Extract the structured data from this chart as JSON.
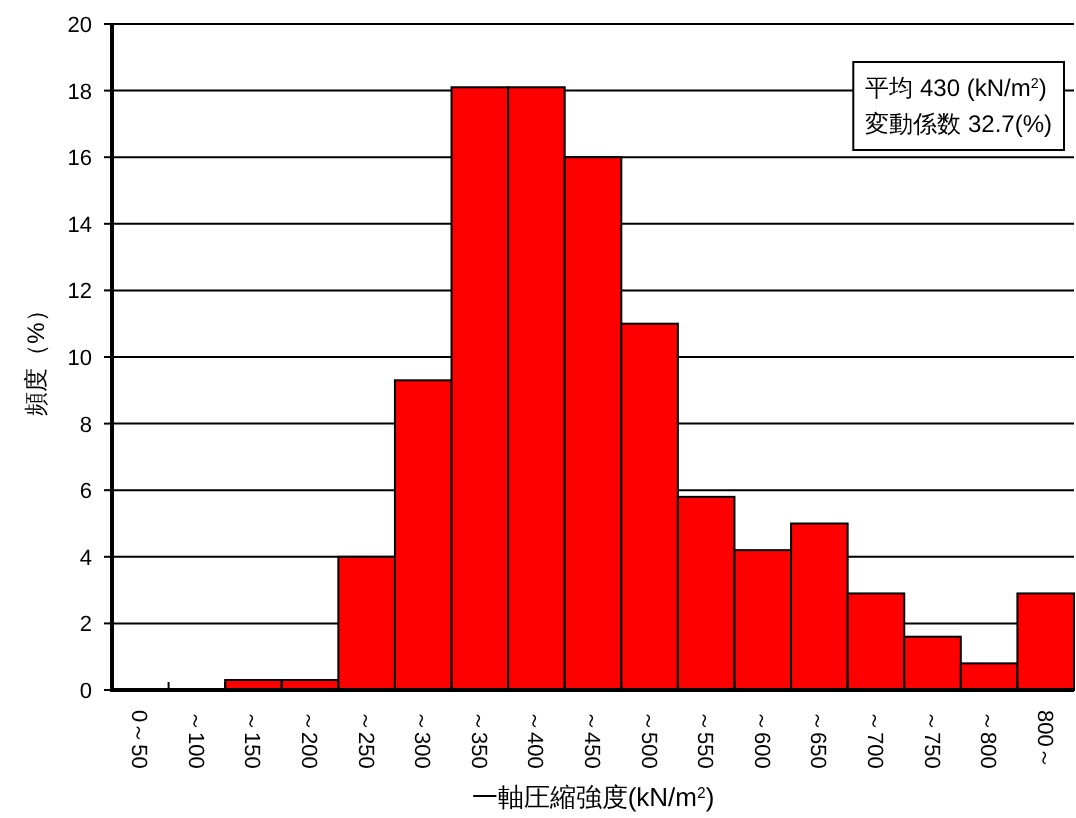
{
  "chart_data": {
    "type": "bar",
    "categories": [
      "0～50",
      "～100",
      "～150",
      "～200",
      "～250",
      "～300",
      "～350",
      "～400",
      "～450",
      "～500",
      "～550",
      "～600",
      "～650",
      "～700",
      "～750",
      "～800",
      "800～"
    ],
    "values": [
      0,
      0,
      0.3,
      0.3,
      4.0,
      9.3,
      18.1,
      18.1,
      16.0,
      11.0,
      5.8,
      4.2,
      5.0,
      2.9,
      1.6,
      0.8,
      2.9
    ],
    "color": "#ff0000",
    "ylim": [
      0,
      20
    ],
    "yticks": [
      0,
      2,
      4,
      6,
      8,
      10,
      12,
      14,
      16,
      18,
      20
    ],
    "grid": "y",
    "xlabel": "一軸圧縮強度(kN/m$^{2}$)",
    "ylabel": "頻度（%）",
    "annotations": [
      "平均  430 (kN/m$^{2}$)",
      "変動係数  32.7(%)"
    ]
  }
}
